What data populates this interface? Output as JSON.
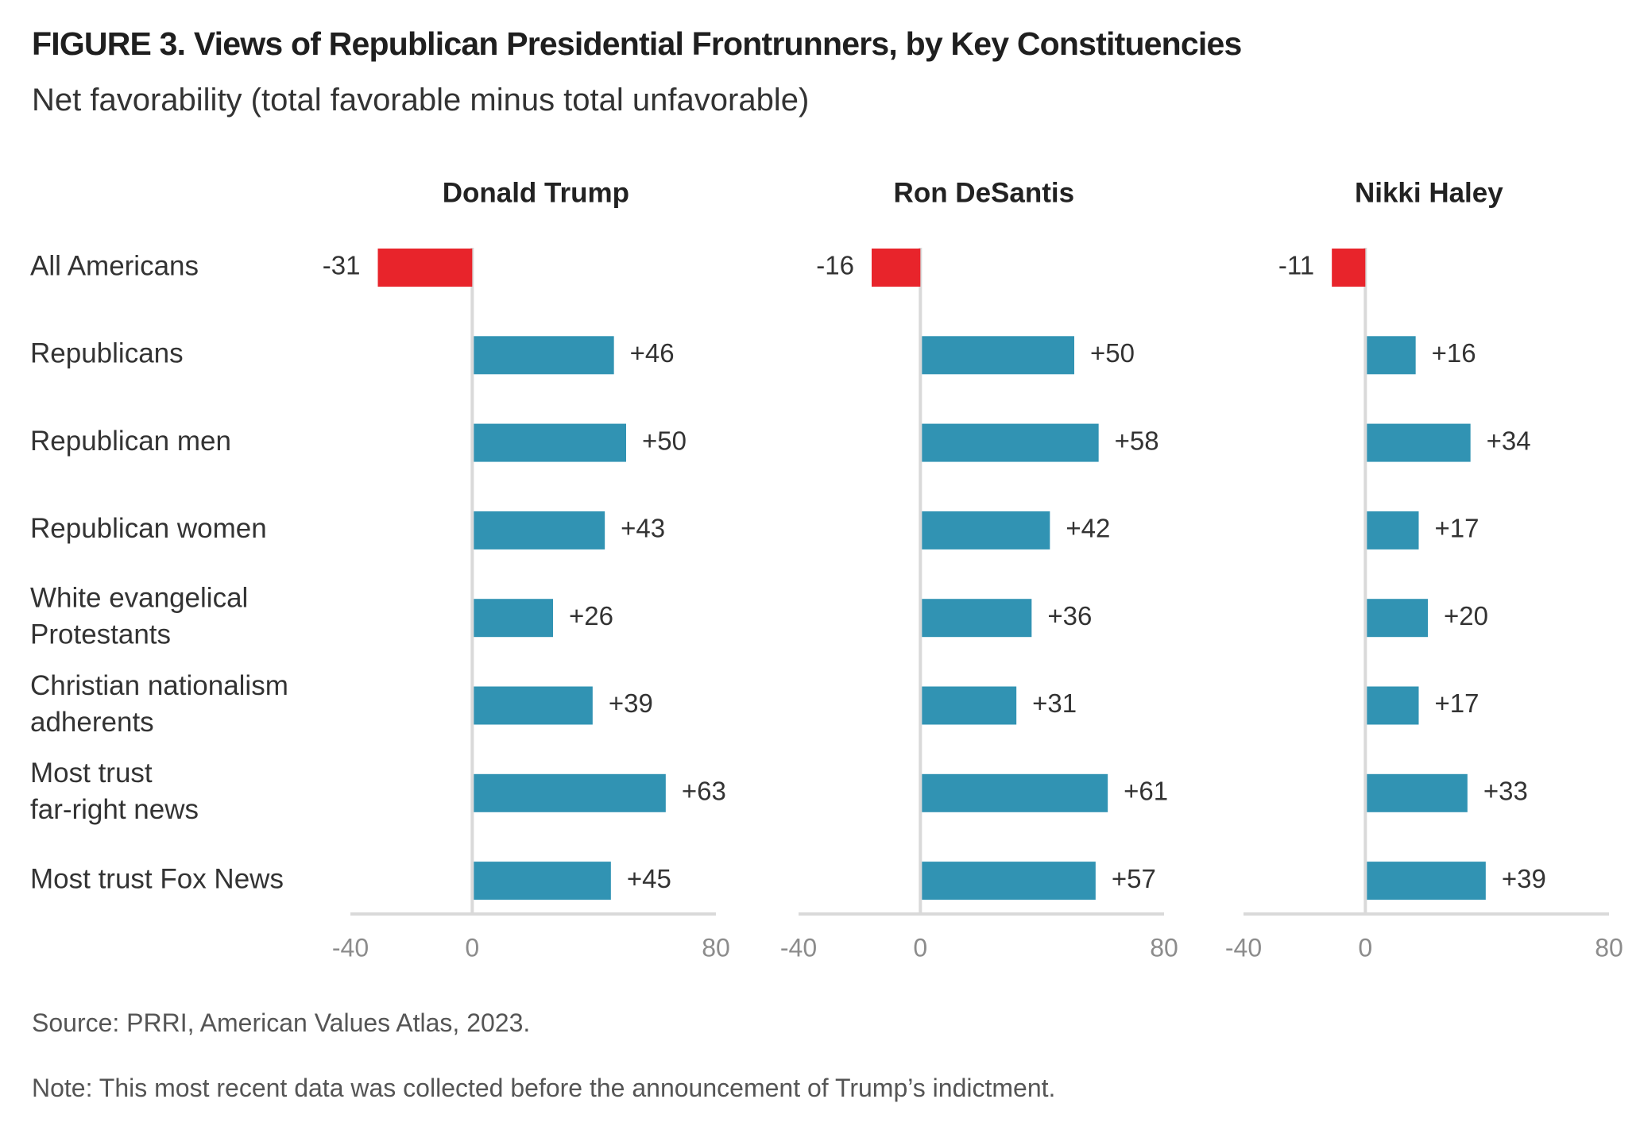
{
  "title": "FIGURE 3.  Views of Republican Presidential Frontrunners, by Key Constituencies",
  "subtitle": "Net favorability (total favorable minus total unfavorable)",
  "source": "Source: PRRI, American Values Atlas, 2023.",
  "note": "Note: This most recent data was collected before the announcement of Trump’s indictment.",
  "colors": {
    "positive": "#3193b3",
    "negative": "#e8242b",
    "axis": "#d9d9d9",
    "tick_text": "#8c8c8c"
  },
  "chart_data": {
    "type": "bar",
    "orientation": "horizontal",
    "categories": [
      [
        "All Americans"
      ],
      [
        "Republicans"
      ],
      [
        "Republican men"
      ],
      [
        "Republican women"
      ],
      [
        "White evangelical",
        "Protestants"
      ],
      [
        "Christian nationalism",
        "adherents"
      ],
      [
        "Most trust",
        "far-right news"
      ],
      [
        "Most trust Fox News"
      ]
    ],
    "xlim": [
      -40,
      80
    ],
    "xticks": [
      "-40",
      "0",
      "80"
    ],
    "panels": [
      {
        "name": "Donald Trump",
        "values": [
          -31,
          46,
          50,
          43,
          26,
          39,
          63,
          45
        ],
        "labels": [
          "-31",
          "+46",
          "+50",
          "+43",
          "+26",
          "+39",
          "+63",
          "+45"
        ]
      },
      {
        "name": "Ron DeSantis",
        "values": [
          -16,
          50,
          58,
          42,
          36,
          31,
          61,
          57
        ],
        "labels": [
          "-16",
          "+50",
          "+58",
          "+42",
          "+36",
          "+31",
          "+61",
          "+57"
        ]
      },
      {
        "name": "Nikki Haley",
        "values": [
          -11,
          16,
          34,
          17,
          20,
          17,
          33,
          39
        ],
        "labels": [
          "-11",
          "+16",
          "+34",
          "+17",
          "+20",
          "+17",
          "+33",
          "+39"
        ]
      }
    ]
  }
}
